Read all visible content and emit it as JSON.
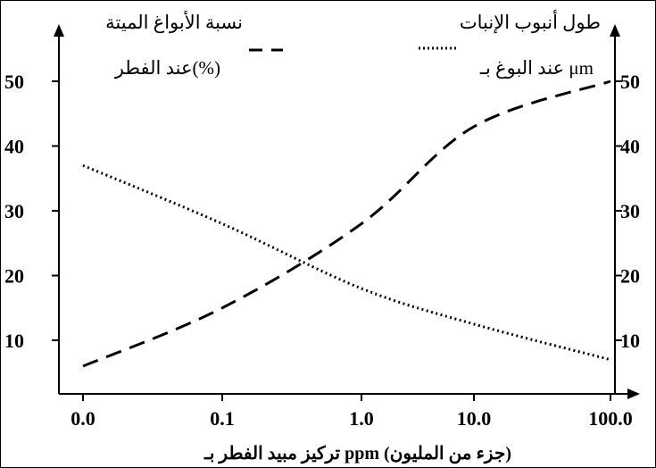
{
  "chart_data": {
    "type": "line",
    "x_tick_labels": [
      "0.0",
      "0.1",
      "1.0",
      "10.0",
      "100.0"
    ],
    "x_axis_title": "تركيز مبيد الفطر بـ ppm (جزء من المليون)",
    "y_left_ticks": [
      10,
      20,
      30,
      40,
      50
    ],
    "y_right_ticks": [
      10,
      20,
      30,
      40,
      50
    ],
    "ylim": [
      0,
      55
    ],
    "left_axis_label": [
      "نسبة الأبواغ الميتة",
      "عند الفطر(%)"
    ],
    "right_axis_label": [
      "طول أنبوب الإنبات",
      "عند البوغ بـ μm"
    ],
    "series": [
      {
        "name": "نسبة الأبواغ الميتة عند الفطر(%)",
        "style": "dashed",
        "axis": "left",
        "x": [
          "0.0",
          "0.1",
          "1.0",
          "10.0",
          "100.0"
        ],
        "values": [
          6,
          15,
          28,
          43,
          50
        ]
      },
      {
        "name": "طول أنبوب الإنبات عند البوغ بـ μm",
        "style": "dotted",
        "axis": "right",
        "x": [
          "0.0",
          "0.1",
          "1.0",
          "10.0",
          "100.0"
        ],
        "values": [
          37,
          28,
          18,
          12.5,
          7
        ]
      }
    ],
    "grid": false,
    "legend_placement": "top"
  },
  "colors": {
    "line": "#000000",
    "background": "#ffffff"
  }
}
